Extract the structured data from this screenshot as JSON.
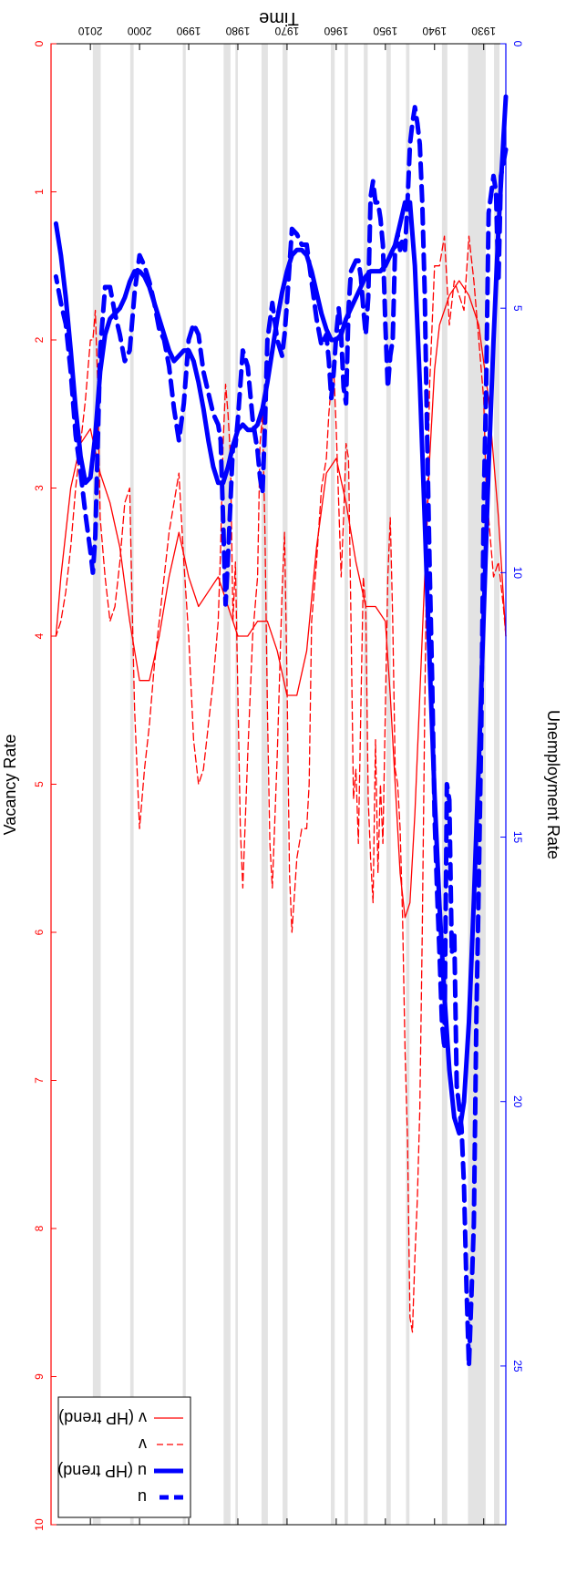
{
  "chart_data": {
    "type": "line",
    "orientation": "rotated-180",
    "xlabel": "Time",
    "ylabel_left": "Unemployment Rate",
    "ylabel_right": "Vacancy Rate",
    "x_ticks": [
      "1930",
      "1940",
      "1950",
      "1960",
      "1970",
      "1980",
      "1990",
      "2000",
      "2010"
    ],
    "xlim": [
      1925.5,
      2018
    ],
    "ylim_left": [
      0,
      28
    ],
    "yticks_left": [
      "0",
      "5",
      "10",
      "15",
      "20",
      "25"
    ],
    "ylim_right": [
      0,
      10
    ],
    "yticks_right": [
      "0",
      "1",
      "2",
      "3",
      "4",
      "5",
      "6",
      "7",
      "8",
      "9",
      "10"
    ],
    "left_axis_color": "#0000ff",
    "right_axis_color": "#ff0000",
    "grid": false,
    "legend_position": "top-right",
    "legend": [
      {
        "label": "u",
        "style": "dashed",
        "color": "#0000ff",
        "width": "thick"
      },
      {
        "label": "u (HP trend)",
        "style": "solid",
        "color": "#0000ff",
        "width": "thick"
      },
      {
        "label": "v",
        "style": "dashed",
        "color": "#ff0000",
        "width": "thin"
      },
      {
        "label": "v (HP trend)",
        "style": "solid",
        "color": "#ff0000",
        "width": "thin"
      }
    ],
    "recession_shading": [
      [
        1926.8,
        1927.9
      ],
      [
        1929.6,
        1933.2
      ],
      [
        1937.4,
        1938.5
      ],
      [
        1945.1,
        1945.8
      ],
      [
        1948.9,
        1949.8
      ],
      [
        1953.6,
        1954.4
      ],
      [
        1957.6,
        1958.3
      ],
      [
        1960.3,
        1961.1
      ],
      [
        1969.9,
        1970.9
      ],
      [
        1973.9,
        1975.2
      ],
      [
        1980.0,
        1980.5
      ],
      [
        1981.5,
        1982.9
      ],
      [
        1990.6,
        1991.2
      ],
      [
        2001.2,
        2001.9
      ],
      [
        2007.9,
        2009.5
      ]
    ],
    "series": [
      {
        "name": "u",
        "axis": "left",
        "style": "dashed",
        "color": "#0000ff",
        "x": [
          1925.5,
          1926.5,
          1927,
          1927.5,
          1928,
          1929,
          1929.5,
          1930,
          1930.5,
          1931,
          1931.5,
          1932,
          1932.5,
          1933,
          1933.5,
          1934,
          1934.5,
          1935,
          1935.5,
          1936,
          1936.5,
          1937,
          1937.5,
          1938,
          1938.5,
          1939,
          1939.5,
          1940,
          1940.5,
          1941,
          1941.5,
          1942,
          1942.5,
          1943,
          1943.5,
          1944,
          1944.5,
          1945,
          1945.5,
          1946,
          1946.5,
          1947,
          1947.5,
          1948,
          1948.5,
          1949,
          1949.5,
          1950,
          1950.5,
          1951,
          1951.5,
          1952,
          1952.5,
          1953,
          1953.5,
          1954,
          1954.5,
          1955,
          1955.5,
          1956,
          1956.5,
          1957,
          1957.5,
          1958,
          1958.5,
          1959,
          1959.5,
          1960,
          1960.5,
          1961,
          1961.5,
          1962,
          1963,
          1964,
          1965,
          1966,
          1967,
          1968,
          1969,
          1970,
          1970.5,
          1971,
          1972,
          1973,
          1974,
          1974.5,
          1975,
          1975.5,
          1976,
          1977,
          1978,
          1979,
          1980,
          1980.5,
          1981,
          1982,
          1982.5,
          1983,
          1983.5,
          1984,
          1985,
          1986,
          1987,
          1988,
          1989,
          1990,
          1991,
          1992,
          1993,
          1994,
          1995,
          1996,
          1997,
          1998,
          1999,
          2000,
          2001,
          2002,
          2003,
          2004,
          2005,
          2006,
          2007,
          2008,
          2009,
          2009.5,
          2010,
          2011,
          2012,
          2013,
          2014,
          2015,
          2016,
          2017
        ],
        "y": [
          2.0,
          2.5,
          4.5,
          2.8,
          2.5,
          3.2,
          6.5,
          8.7,
          13.0,
          15.9,
          18.5,
          22.3,
          23.7,
          25.0,
          23.5,
          21.6,
          20.5,
          20.1,
          19.7,
          16.8,
          17.2,
          14.3,
          14.0,
          19.0,
          18.5,
          17.2,
          16.0,
          14.6,
          12.0,
          9.9,
          7.5,
          4.7,
          3.0,
          1.9,
          1.5,
          1.2,
          1.5,
          1.9,
          3.0,
          3.9,
          3.7,
          3.9,
          3.6,
          3.8,
          5.6,
          5.9,
          6.5,
          5.3,
          3.8,
          3.3,
          3.0,
          3.0,
          2.6,
          2.9,
          4.8,
          5.5,
          5.0,
          4.4,
          4.1,
          4.1,
          4.2,
          4.3,
          5.0,
          6.8,
          6.5,
          5.5,
          5.0,
          5.5,
          6.2,
          6.7,
          6.0,
          5.5,
          5.7,
          5.2,
          4.5,
          3.8,
          3.8,
          3.6,
          3.5,
          4.9,
          5.5,
          5.9,
          5.6,
          4.9,
          5.6,
          7.2,
          8.5,
          8.2,
          7.7,
          7.1,
          6.1,
          5.8,
          7.1,
          7.6,
          7.6,
          9.7,
          10.6,
          9.0,
          7.5,
          7.2,
          7.0,
          6.6,
          6.2,
          5.5,
          5.3,
          5.6,
          6.8,
          7.5,
          6.9,
          6.1,
          5.6,
          5.4,
          4.9,
          4.5,
          4.2,
          4.0,
          4.7,
          5.8,
          6.0,
          5.5,
          5.1,
          4.6,
          4.6,
          5.8,
          9.3,
          10.0,
          9.6,
          8.9,
          8.1,
          7.4,
          6.2,
          5.3,
          4.9,
          4.4
        ]
      },
      {
        "name": "u (HP trend)",
        "axis": "left",
        "style": "solid",
        "color": "#0000ff",
        "x": [
          1925.5,
          1926,
          1927,
          1928,
          1929,
          1930,
          1931,
          1932,
          1933,
          1934,
          1935,
          1936,
          1937,
          1938,
          1939,
          1940,
          1941,
          1942,
          1943,
          1944,
          1945,
          1946,
          1947,
          1948,
          1949,
          1950,
          1951,
          1952,
          1953,
          1954,
          1955,
          1956,
          1957,
          1958,
          1959,
          1960,
          1961,
          1962,
          1963,
          1964,
          1965,
          1966,
          1967,
          1968,
          1969,
          1970,
          1971,
          1972,
          1973,
          1974,
          1975,
          1976,
          1977,
          1978,
          1979,
          1980,
          1981,
          1982,
          1983,
          1984,
          1985,
          1986,
          1987,
          1988,
          1989,
          1990,
          1991,
          1992,
          1993,
          1994,
          1995,
          1996,
          1997,
          1998,
          1999,
          2000,
          2001,
          2002,
          2003,
          2004,
          2005,
          2006,
          2007,
          2008,
          2009,
          2010,
          2011,
          2012,
          2013,
          2014,
          2015,
          2016,
          2017
        ],
        "y": [
          1.0,
          1.8,
          3.5,
          5.6,
          8.0,
          10.8,
          13.6,
          16.2,
          18.5,
          20.0,
          20.6,
          20.3,
          19.4,
          18.0,
          16.3,
          14.2,
          11.7,
          9.0,
          6.4,
          4.2,
          3.0,
          3.0,
          3.4,
          3.8,
          4.0,
          4.2,
          4.3,
          4.3,
          4.3,
          4.4,
          4.6,
          4.8,
          5.0,
          5.2,
          5.5,
          5.6,
          5.6,
          5.4,
          5.1,
          4.7,
          4.3,
          4.0,
          3.9,
          3.9,
          4.0,
          4.3,
          4.7,
          5.2,
          5.8,
          6.4,
          6.9,
          7.2,
          7.3,
          7.3,
          7.2,
          7.3,
          7.6,
          8.0,
          8.3,
          8.3,
          8.0,
          7.5,
          6.9,
          6.4,
          6.0,
          5.8,
          5.8,
          5.9,
          6.0,
          5.8,
          5.5,
          5.2,
          4.9,
          4.6,
          4.4,
          4.3,
          4.3,
          4.5,
          4.8,
          5.0,
          5.1,
          5.2,
          5.5,
          6.2,
          7.4,
          8.2,
          8.3,
          7.8,
          6.9,
          5.8,
          4.8,
          4.0,
          3.4
        ]
      },
      {
        "name": "v",
        "axis": "right",
        "style": "dashed",
        "color": "#ff0000",
        "x": [
          1925.5,
          1926,
          1927,
          1928,
          1929,
          1929.5,
          1930,
          1931,
          1932,
          1933,
          1934,
          1935,
          1936,
          1937,
          1938,
          1939,
          1940,
          1941,
          1941.5,
          1942,
          1942.5,
          1943,
          1943.5,
          1944,
          1944.5,
          1945,
          1945.5,
          1946,
          1946.5,
          1947,
          1947.5,
          1948,
          1948.5,
          1949,
          1949.5,
          1950,
          1950.5,
          1951,
          1951.5,
          1952,
          1952.5,
          1953,
          1953.5,
          1954,
          1954.5,
          1955,
          1955.5,
          1956,
          1956.5,
          1957,
          1957.5,
          1958,
          1958.5,
          1959,
          1959.5,
          1960,
          1960.5,
          1961,
          1961.5,
          1962,
          1963,
          1964,
          1965,
          1965.5,
          1966,
          1967,
          1968,
          1969,
          1969.5,
          1970,
          1970.5,
          1971,
          1972,
          1973,
          1973.5,
          1974,
          1974.5,
          1975,
          1975.5,
          1976,
          1977,
          1978,
          1979,
          1979.5,
          1980,
          1980.5,
          1981,
          1981.5,
          1982,
          1982.5,
          1983,
          1983.5,
          1984,
          1985,
          1986,
          1987,
          1988,
          1989,
          1990,
          1991,
          1992,
          1993,
          1994,
          1995,
          1996,
          1997,
          1998,
          1999,
          2000,
          2001,
          2001.5,
          2002,
          2003,
          2004,
          2005,
          2006,
          2007,
          2008,
          2008.5,
          2009,
          2009.5,
          2010,
          2011,
          2012,
          2013,
          2014,
          2015,
          2016,
          2017
        ],
        "y": [
          4.0,
          3.8,
          3.5,
          3.6,
          3.2,
          3.0,
          2.4,
          2.0,
          1.6,
          1.3,
          1.8,
          1.7,
          1.6,
          1.9,
          1.3,
          1.5,
          1.5,
          2.3,
          3.2,
          4.5,
          6.0,
          7.2,
          7.8,
          8.2,
          8.7,
          8.6,
          7.4,
          6.8,
          5.9,
          5.3,
          5.0,
          4.9,
          3.9,
          3.2,
          3.6,
          4.5,
          5.4,
          5.0,
          5.6,
          4.7,
          5.8,
          5.5,
          5.1,
          3.8,
          3.6,
          4.5,
          5.4,
          4.9,
          5.1,
          3.9,
          2.8,
          2.7,
          3.2,
          3.6,
          3.1,
          2.6,
          2.2,
          2.3,
          2.5,
          2.8,
          3.0,
          3.5,
          3.9,
          5.0,
          5.3,
          5.3,
          5.5,
          6.0,
          5.6,
          4.3,
          3.3,
          3.7,
          4.8,
          5.7,
          5.4,
          4.5,
          3.3,
          2.5,
          2.7,
          3.6,
          4.0,
          4.8,
          5.7,
          5.3,
          4.4,
          3.5,
          3.9,
          2.8,
          2.5,
          2.3,
          2.7,
          3.4,
          3.9,
          4.3,
          4.6,
          4.9,
          5.0,
          4.7,
          4.0,
          3.5,
          2.9,
          3.1,
          3.3,
          3.6,
          3.9,
          4.2,
          4.6,
          4.9,
          5.3,
          4.5,
          3.8,
          3.0,
          3.1,
          3.5,
          3.8,
          3.9,
          3.6,
          3.2,
          2.3,
          1.8,
          2.0,
          2.0,
          2.4,
          2.7,
          3.0,
          3.4,
          3.7,
          3.9,
          4.0
        ]
      },
      {
        "name": "v (HP trend)",
        "axis": "right",
        "style": "solid",
        "color": "#ff0000",
        "x": [
          1925.5,
          1927,
          1929,
          1931,
          1933,
          1935,
          1937,
          1939,
          1940,
          1941,
          1942,
          1943,
          1944,
          1945,
          1946,
          1947,
          1948,
          1949,
          1950,
          1952,
          1954,
          1956,
          1958,
          1960,
          1962,
          1964,
          1966,
          1968,
          1970,
          1972,
          1974,
          1976,
          1978,
          1980,
          1982,
          1984,
          1986,
          1988,
          1990,
          1992,
          1994,
          1996,
          1998,
          2000,
          2002,
          2004,
          2006,
          2008,
          2010,
          2012,
          2014,
          2016,
          2017
        ],
        "y": [
          4.0,
          3.2,
          2.4,
          1.9,
          1.7,
          1.6,
          1.7,
          1.9,
          2.2,
          2.8,
          3.6,
          4.4,
          5.2,
          5.8,
          5.9,
          5.6,
          5.0,
          4.4,
          3.9,
          3.8,
          3.8,
          3.5,
          3.1,
          2.8,
          2.9,
          3.4,
          4.1,
          4.4,
          4.4,
          4.1,
          3.9,
          3.9,
          4.0,
          4.0,
          3.8,
          3.6,
          3.7,
          3.8,
          3.6,
          3.3,
          3.6,
          4.0,
          4.3,
          4.3,
          3.9,
          3.4,
          3.1,
          2.9,
          2.6,
          2.7,
          3.0,
          3.6,
          4.0
        ]
      }
    ]
  }
}
